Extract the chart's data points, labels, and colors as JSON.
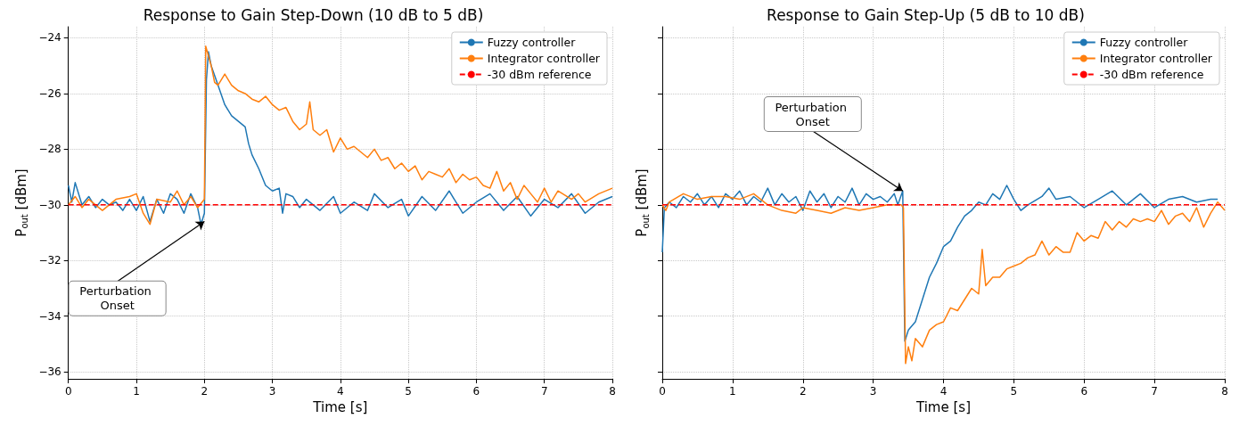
{
  "chart_data": [
    {
      "type": "line",
      "title": "Response to Gain Step-Down (10 dB to 5 dB)",
      "xlabel": "Time [s]",
      "ylabel": "P$_{out}$ [dBm]",
      "xlim": [
        0,
        8
      ],
      "xticks": [
        0,
        1,
        2,
        3,
        4,
        5,
        6,
        7,
        8
      ],
      "ylim": [
        -36.25,
        -23.6
      ],
      "yticks": [
        -36,
        -34,
        -32,
        -30,
        -28,
        -26,
        -24
      ],
      "grid": true,
      "legend": "top right",
      "line_style": "solid",
      "marker": "none",
      "series": [
        {
          "name": "Fuzzy controller",
          "color": "#1f77b4",
          "x": [
            0,
            0.05,
            0.1,
            0.2,
            0.3,
            0.4,
            0.5,
            0.6,
            0.7,
            0.8,
            0.9,
            1.0,
            1.1,
            1.2,
            1.3,
            1.4,
            1.5,
            1.6,
            1.7,
            1.8,
            1.9,
            1.95,
            2.0,
            2.03,
            2.06,
            2.1,
            2.2,
            2.3,
            2.4,
            2.5,
            2.6,
            2.65,
            2.7,
            2.8,
            2.9,
            3.0,
            3.1,
            3.15,
            3.2,
            3.3,
            3.4,
            3.5,
            3.7,
            3.9,
            4.0,
            4.2,
            4.4,
            4.5,
            4.7,
            4.9,
            5.0,
            5.2,
            5.4,
            5.6,
            5.8,
            6.0,
            6.2,
            6.4,
            6.6,
            6.8,
            7.0,
            7.2,
            7.4,
            7.6,
            7.8,
            8.0
          ],
          "values": [
            -29.3,
            -29.9,
            -29.2,
            -30.0,
            -29.7,
            -30.1,
            -29.8,
            -30.0,
            -29.9,
            -30.2,
            -29.8,
            -30.2,
            -29.7,
            -30.6,
            -29.8,
            -30.3,
            -29.6,
            -29.8,
            -30.3,
            -29.6,
            -30.1,
            -30.7,
            -30.3,
            -25.5,
            -24.5,
            -25.0,
            -25.7,
            -26.4,
            -26.8,
            -27.0,
            -27.2,
            -27.8,
            -28.2,
            -28.7,
            -29.3,
            -29.5,
            -29.4,
            -30.3,
            -29.6,
            -29.7,
            -30.1,
            -29.8,
            -30.2,
            -29.7,
            -30.3,
            -29.9,
            -30.2,
            -29.6,
            -30.1,
            -29.8,
            -30.4,
            -29.7,
            -30.2,
            -29.5,
            -30.3,
            -29.9,
            -29.6,
            -30.2,
            -29.7,
            -30.4,
            -29.8,
            -30.1,
            -29.6,
            -30.3,
            -29.9,
            -29.7
          ]
        },
        {
          "name": "Integrator controller",
          "color": "#ff7f0e",
          "x": [
            0,
            0.1,
            0.2,
            0.3,
            0.5,
            0.7,
            0.9,
            1.0,
            1.1,
            1.2,
            1.3,
            1.5,
            1.6,
            1.7,
            1.8,
            1.9,
            2.0,
            2.02,
            2.1,
            2.15,
            2.2,
            2.3,
            2.4,
            2.5,
            2.6,
            2.7,
            2.8,
            2.9,
            3.0,
            3.1,
            3.2,
            3.3,
            3.4,
            3.5,
            3.55,
            3.6,
            3.7,
            3.8,
            3.9,
            4.0,
            4.1,
            4.2,
            4.3,
            4.4,
            4.5,
            4.6,
            4.7,
            4.8,
            4.9,
            5.0,
            5.1,
            5.2,
            5.3,
            5.4,
            5.5,
            5.6,
            5.7,
            5.8,
            5.9,
            6.0,
            6.1,
            6.2,
            6.3,
            6.4,
            6.5,
            6.6,
            6.7,
            6.8,
            6.9,
            7.0,
            7.1,
            7.2,
            7.4,
            7.5,
            7.6,
            7.8,
            8.0
          ],
          "values": [
            -30.0,
            -29.7,
            -30.1,
            -29.8,
            -30.2,
            -29.8,
            -29.7,
            -29.6,
            -30.3,
            -30.7,
            -29.8,
            -29.9,
            -29.5,
            -30.0,
            -29.7,
            -30.1,
            -29.8,
            -24.3,
            -25.0,
            -25.6,
            -25.7,
            -25.3,
            -25.7,
            -25.9,
            -26.0,
            -26.2,
            -26.3,
            -26.1,
            -26.4,
            -26.6,
            -26.5,
            -27.0,
            -27.3,
            -27.1,
            -26.3,
            -27.3,
            -27.5,
            -27.3,
            -28.1,
            -27.6,
            -28.0,
            -27.9,
            -28.1,
            -28.3,
            -28.0,
            -28.4,
            -28.3,
            -28.7,
            -28.5,
            -28.8,
            -28.6,
            -29.1,
            -28.8,
            -28.9,
            -29.0,
            -28.7,
            -29.2,
            -28.9,
            -29.1,
            -29.0,
            -29.3,
            -29.4,
            -28.8,
            -29.5,
            -29.2,
            -29.8,
            -29.3,
            -29.6,
            -29.9,
            -29.4,
            -29.9,
            -29.5,
            -29.8,
            -29.6,
            -29.9,
            -29.6,
            -29.4
          ]
        }
      ],
      "ref_lines": [
        {
          "axis": "y",
          "value": -30,
          "label": "-30 dBm reference",
          "color": "#ff0000",
          "line_style": "dashed"
        }
      ],
      "annotations": [
        {
          "text": "Perturbation Onset",
          "x": 2,
          "y": -30.6
        }
      ]
    },
    {
      "type": "line",
      "title": "Response to Gain Step-Up (5 dB to 10 dB)",
      "xlabel": "Time [s]",
      "ylabel": "P$_{out}$ [dBm]",
      "xlim": [
        0,
        8
      ],
      "xticks": [
        0,
        1,
        2,
        3,
        4,
        5,
        6,
        7,
        8
      ],
      "ylim": [
        -36.25,
        -23.6
      ],
      "yticks": [
        -36,
        -34,
        -32,
        -30,
        -28,
        -26,
        -24
      ],
      "tick_labels": "x",
      "grid": true,
      "legend": "top right",
      "line_style": "solid",
      "marker": "none",
      "series": [
        {
          "name": "Fuzzy controller",
          "color": "#1f77b4",
          "x": [
            0,
            0.03,
            0.1,
            0.2,
            0.3,
            0.4,
            0.5,
            0.6,
            0.7,
            0.8,
            0.9,
            1.0,
            1.1,
            1.2,
            1.3,
            1.4,
            1.5,
            1.6,
            1.7,
            1.8,
            1.9,
            2.0,
            2.1,
            2.2,
            2.3,
            2.4,
            2.5,
            2.6,
            2.7,
            2.8,
            2.9,
            3.0,
            3.1,
            3.2,
            3.3,
            3.35,
            3.42,
            3.45,
            3.5,
            3.6,
            3.7,
            3.8,
            3.9,
            4.0,
            4.1,
            4.2,
            4.3,
            4.4,
            4.5,
            4.6,
            4.7,
            4.8,
            4.9,
            5.0,
            5.1,
            5.2,
            5.4,
            5.5,
            5.6,
            5.8,
            6.0,
            6.2,
            6.4,
            6.6,
            6.8,
            7.0,
            7.2,
            7.4,
            7.6,
            7.8,
            7.9
          ],
          "values": [
            -31.7,
            -30.1,
            -29.9,
            -30.1,
            -29.7,
            -29.9,
            -29.6,
            -30.0,
            -29.7,
            -30.1,
            -29.6,
            -29.8,
            -29.5,
            -30.0,
            -29.7,
            -29.9,
            -29.4,
            -30.0,
            -29.6,
            -29.9,
            -29.7,
            -30.2,
            -29.5,
            -29.9,
            -29.6,
            -30.1,
            -29.7,
            -29.9,
            -29.4,
            -30.0,
            -29.6,
            -29.8,
            -29.7,
            -29.9,
            -29.6,
            -30.0,
            -29.5,
            -34.9,
            -34.5,
            -34.2,
            -33.4,
            -32.6,
            -32.1,
            -31.5,
            -31.3,
            -30.8,
            -30.4,
            -30.2,
            -29.9,
            -30.0,
            -29.6,
            -29.8,
            -29.3,
            -29.8,
            -30.2,
            -30.0,
            -29.7,
            -29.4,
            -29.8,
            -29.7,
            -30.1,
            -29.8,
            -29.5,
            -30.0,
            -29.6,
            -30.1,
            -29.8,
            -29.7,
            -29.9,
            -29.8,
            -29.8
          ]
        },
        {
          "name": "Integrator controller",
          "color": "#ff7f0e",
          "x": [
            0,
            0.05,
            0.1,
            0.3,
            0.5,
            0.7,
            0.9,
            1.1,
            1.3,
            1.5,
            1.7,
            1.9,
            2.0,
            2.2,
            2.4,
            2.6,
            2.8,
            3.0,
            3.2,
            3.4,
            3.43,
            3.46,
            3.5,
            3.55,
            3.6,
            3.7,
            3.8,
            3.9,
            4.0,
            4.1,
            4.2,
            4.3,
            4.4,
            4.5,
            4.55,
            4.6,
            4.7,
            4.8,
            4.9,
            5.0,
            5.1,
            5.2,
            5.3,
            5.4,
            5.5,
            5.6,
            5.7,
            5.8,
            5.9,
            6.0,
            6.1,
            6.2,
            6.3,
            6.4,
            6.5,
            6.6,
            6.7,
            6.8,
            6.9,
            7.0,
            7.1,
            7.2,
            7.3,
            7.4,
            7.5,
            7.6,
            7.7,
            7.8,
            7.9,
            8.0
          ],
          "values": [
            -30.0,
            -30.2,
            -29.9,
            -29.6,
            -29.8,
            -29.7,
            -29.7,
            -29.8,
            -29.6,
            -30.0,
            -30.2,
            -30.3,
            -30.1,
            -30.2,
            -30.3,
            -30.1,
            -30.2,
            -30.1,
            -30.0,
            -30.0,
            -30.1,
            -35.7,
            -35.1,
            -35.6,
            -34.8,
            -35.1,
            -34.5,
            -34.3,
            -34.2,
            -33.7,
            -33.8,
            -33.4,
            -33.0,
            -33.2,
            -31.6,
            -32.9,
            -32.6,
            -32.6,
            -32.3,
            -32.2,
            -32.1,
            -31.9,
            -31.8,
            -31.3,
            -31.8,
            -31.5,
            -31.7,
            -31.7,
            -31.0,
            -31.3,
            -31.1,
            -31.2,
            -30.6,
            -30.9,
            -30.6,
            -30.8,
            -30.5,
            -30.6,
            -30.5,
            -30.6,
            -30.2,
            -30.7,
            -30.4,
            -30.3,
            -30.6,
            -30.1,
            -30.8,
            -30.3,
            -29.9,
            -30.2
          ]
        }
      ],
      "ref_lines": [
        {
          "axis": "y",
          "value": -30,
          "label": "-30 dBm reference",
          "color": "#ff0000",
          "line_style": "dashed"
        }
      ],
      "annotations": [
        {
          "text": "Perturbation Onset",
          "x": 3.42,
          "y": -29.5
        }
      ]
    }
  ]
}
